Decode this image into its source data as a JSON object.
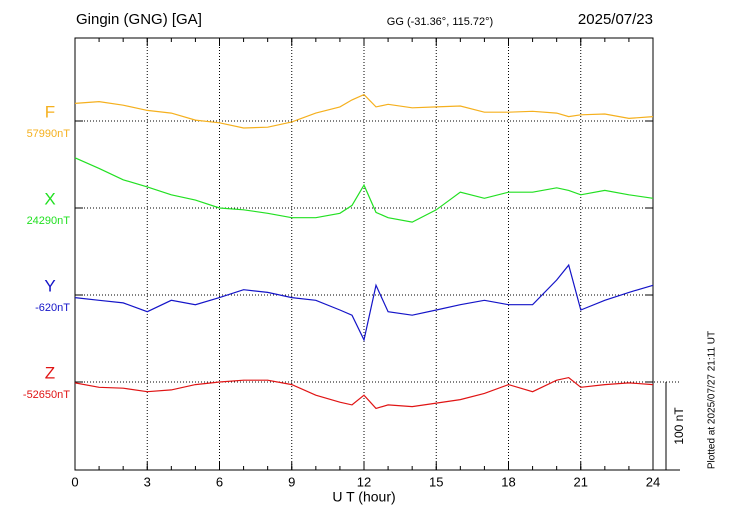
{
  "chart_data": {
    "type": "line",
    "title": "Gingin (GNG)  [GA]",
    "subtitle": "GG (-31.36°, 115.72°)",
    "date": "2025/07/23",
    "x_label": "U T (hour)",
    "footnote": "Plotted at 2025/07/27 21:11 UT",
    "xlim": [
      0,
      24
    ],
    "xticks": [
      0,
      3,
      6,
      9,
      12,
      15,
      18,
      21,
      24
    ],
    "grid": true,
    "scale_bar": {
      "value": 100,
      "label": "100 nT"
    },
    "x": [
      0,
      1,
      2,
      3,
      4,
      5,
      6,
      7,
      8,
      9,
      10,
      11,
      11.5,
      12,
      12.5,
      13,
      14,
      15,
      16,
      17,
      18,
      19,
      20,
      20.5,
      21,
      22,
      23,
      24
    ],
    "series": [
      {
        "name": "F",
        "color": "#f5b01e",
        "baseline": {
          "value": 57990,
          "label": "57990nT"
        },
        "values": [
          58010,
          58012,
          58008,
          58002,
          57999,
          57991,
          57988,
          57982,
          57983,
          57989,
          57999,
          58006,
          58014,
          58020,
          58006,
          58009,
          58005,
          58006,
          58007,
          58000,
          58000,
          58001,
          57999,
          57995,
          57997,
          57998,
          57993,
          57995
        ]
      },
      {
        "name": "X",
        "color": "#22e022",
        "baseline": {
          "value": 24290,
          "label": "24290nT"
        },
        "values": [
          24347,
          24335,
          24322,
          24314,
          24305,
          24299,
          24290,
          24288,
          24284,
          24279,
          24279,
          24284,
          24293,
          24316,
          24285,
          24279,
          24274,
          24288,
          24308,
          24301,
          24308,
          24308,
          24313,
          24310,
          24305,
          24310,
          24305,
          24301
        ]
      },
      {
        "name": "Y",
        "color": "#1414c8",
        "baseline": {
          "value": -620,
          "label": "-620nT"
        },
        "values": [
          -623,
          -626,
          -629,
          -639,
          -626,
          -631,
          -623,
          -614,
          -617,
          -623,
          -626,
          -637,
          -643,
          -671,
          -609,
          -639,
          -643,
          -637,
          -631,
          -626,
          -631,
          -631,
          -603,
          -586,
          -637,
          -626,
          -617,
          -609
        ]
      },
      {
        "name": "Z",
        "color": "#e01414",
        "baseline": {
          "value": -52650,
          "label": "-52650nT"
        },
        "values": [
          -52651,
          -52656,
          -52657,
          -52661,
          -52659,
          -52653,
          -52650,
          -52648,
          -52648,
          -52653,
          -52665,
          -52673,
          -52676,
          -52665,
          -52680,
          -52676,
          -52678,
          -52674,
          -52670,
          -52663,
          -52653,
          -52661,
          -52648,
          -52645,
          -52656,
          -52653,
          -52651,
          -52653
        ]
      }
    ]
  }
}
